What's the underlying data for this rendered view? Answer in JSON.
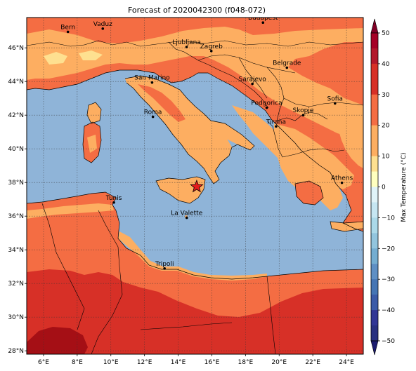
{
  "title": "Forecast of 2020042300 (f048-072)",
  "colorbar": {
    "label": "Max Temperature (°C)",
    "ticks": [
      "50",
      "40",
      "30",
      "20",
      "10",
      "0",
      "−10",
      "−20",
      "−30",
      "−40",
      "−50"
    ],
    "levels": [
      50,
      40,
      30,
      20,
      10,
      0,
      -10,
      -20,
      -30,
      -40,
      -50
    ],
    "colors": [
      "#800026",
      "#a50f15",
      "#d73027",
      "#f46d43",
      "#fdae61",
      "#fee090",
      "#ffffbf",
      "#e0f3f8",
      "#abd9e9",
      "#74add1",
      "#4575b4",
      "#313695",
      "#1a1a6e"
    ]
  },
  "axes": {
    "lon_ticks": [
      "6°E",
      "8°E",
      "10°E",
      "12°E",
      "14°E",
      "16°E",
      "18°E",
      "20°E",
      "22°E",
      "24°E"
    ],
    "lat_ticks": [
      "46°N",
      "44°N",
      "42°N",
      "40°N",
      "38°N",
      "36°N",
      "34°N",
      "32°N",
      "30°N",
      "28°N"
    ],
    "lon_range": [
      5,
      25
    ],
    "lat_range": [
      27.8,
      47.8
    ],
    "grid": true
  },
  "cities": [
    {
      "name": "Bern",
      "lon": 7.45,
      "lat": 46.95
    },
    {
      "name": "Vaduz",
      "lon": 9.52,
      "lat": 47.14
    },
    {
      "name": "Budapest",
      "lon": 19.04,
      "lat": 47.5
    },
    {
      "name": "Ljubljana",
      "lon": 14.5,
      "lat": 46.05
    },
    {
      "name": "Zagreb",
      "lon": 15.97,
      "lat": 45.81
    },
    {
      "name": "Belgrade",
      "lon": 20.46,
      "lat": 44.82
    },
    {
      "name": "San Marino",
      "lon": 12.45,
      "lat": 43.94
    },
    {
      "name": "Sarajevo",
      "lon": 18.41,
      "lat": 43.86
    },
    {
      "name": "Sofia",
      "lon": 23.32,
      "lat": 42.7
    },
    {
      "name": "Roma",
      "lon": 12.5,
      "lat": 41.9
    },
    {
      "name": "Podgorica",
      "lon": 19.26,
      "lat": 42.44
    },
    {
      "name": "Skopje",
      "lon": 21.43,
      "lat": 42.0
    },
    {
      "name": "Tirana",
      "lon": 19.82,
      "lat": 41.33
    },
    {
      "name": "Athens",
      "lon": 23.73,
      "lat": 37.98
    },
    {
      "name": "Tunis",
      "lon": 10.18,
      "lat": 36.81
    },
    {
      "name": "La Valette",
      "lon": 14.51,
      "lat": 35.9
    },
    {
      "name": "Tripoli",
      "lon": 13.19,
      "lat": 32.89
    }
  ],
  "marker": {
    "icon": "red-star-icon",
    "lon": 15.1,
    "lat": 37.75
  }
}
